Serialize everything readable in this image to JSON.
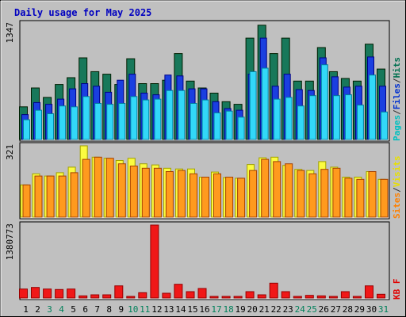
{
  "chart_data": {
    "type": "bar",
    "title": "Daily usage for May 2025",
    "categories": [
      "1",
      "2",
      "3",
      "4",
      "5",
      "6",
      "7",
      "8",
      "9",
      "10",
      "11",
      "12",
      "13",
      "14",
      "15",
      "16",
      "17",
      "18",
      "19",
      "20",
      "21",
      "22",
      "23",
      "24",
      "25",
      "26",
      "27",
      "28",
      "29",
      "30",
      "31"
    ],
    "weekend_days": [
      "3",
      "4",
      "10",
      "11",
      "17",
      "18",
      "24",
      "25",
      "31"
    ],
    "panels": [
      {
        "name": "top",
        "ymax_label": "1347",
        "ylim": [
          0,
          1347
        ],
        "legend": [
          {
            "text": "Pages",
            "color": "#00c0c0"
          },
          {
            "text": "/",
            "color": "#303030"
          },
          {
            "text": "Files",
            "color": "#0030d0"
          },
          {
            "text": "/",
            "color": "#303030"
          },
          {
            "text": "Hits",
            "color": "#007050"
          }
        ],
        "series": [
          {
            "name": "Hits",
            "color": "#17785a",
            "values": [
              380,
              600,
              490,
              640,
              720,
              950,
              790,
              760,
              640,
              940,
              650,
              650,
              690,
              1000,
              680,
              600,
              540,
              440,
              410,
              1180,
              1330,
              1000,
              1180,
              680,
              680,
              1070,
              790,
              710,
              680,
              1110,
              820
            ]
          },
          {
            "name": "Files",
            "color": "#1a3fe0",
            "values": [
              290,
              430,
              410,
              470,
              590,
              650,
              620,
              550,
              690,
              760,
              540,
              520,
              750,
              740,
              590,
              590,
              440,
              360,
              340,
              760,
              1180,
              620,
              760,
              580,
              570,
              950,
              730,
              610,
              620,
              960,
              620
            ]
          },
          {
            "name": "Pages",
            "color": "#32d8f8",
            "values": [
              230,
              340,
              300,
              390,
              380,
              500,
              420,
              410,
              420,
              500,
              460,
              470,
              570,
              570,
              420,
              460,
              310,
              330,
              260,
              790,
              830,
              470,
              490,
              390,
              510,
              870,
              510,
              520,
              400,
              750,
              320
            ]
          }
        ]
      },
      {
        "name": "middle",
        "ymax_label": "321",
        "ylim": [
          0,
          321
        ],
        "legend": [
          {
            "text": "Sites",
            "color": "#ff8000"
          },
          {
            "text": "/",
            "color": "#303030"
          },
          {
            "text": "Visits",
            "color": "#e8e000"
          }
        ],
        "series": [
          {
            "name": "Visits",
            "color": "#fbfb40",
            "values": [
              145,
              195,
              185,
              200,
              225,
              321,
              270,
              265,
              255,
              265,
              240,
              235,
              220,
              217,
              217,
              180,
              203,
              178,
              175,
              237,
              267,
              270,
              233,
              215,
              210,
              250,
              225,
              180,
              180,
              205,
              170
            ]
          },
          {
            "name": "Sites",
            "color": "#ff9a1e",
            "values": [
              145,
              185,
              185,
              185,
              200,
              260,
              270,
              265,
              240,
              230,
              220,
              220,
              205,
              210,
              195,
              180,
              195,
              180,
              175,
              210,
              260,
              250,
              240,
              210,
              195,
              215,
              220,
              175,
              170,
              205,
              170
            ]
          }
        ]
      },
      {
        "name": "bottom",
        "ymax_label": "1380773",
        "ylim": [
          0,
          1380773
        ],
        "legend": [
          {
            "text": "KB F",
            "color": "#e00000"
          }
        ],
        "series": [
          {
            "name": "KB F",
            "color": "#f01818",
            "values": [
              170000,
              200000,
              170000,
              160000,
              170000,
              40000,
              60000,
              60000,
              230000,
              30000,
              100000,
              1380773,
              90000,
              260000,
              120000,
              180000,
              20000,
              20000,
              30000,
              120000,
              60000,
              280000,
              120000,
              30000,
              50000,
              40000,
              30000,
              120000,
              30000,
              230000,
              70000
            ]
          }
        ]
      }
    ]
  }
}
